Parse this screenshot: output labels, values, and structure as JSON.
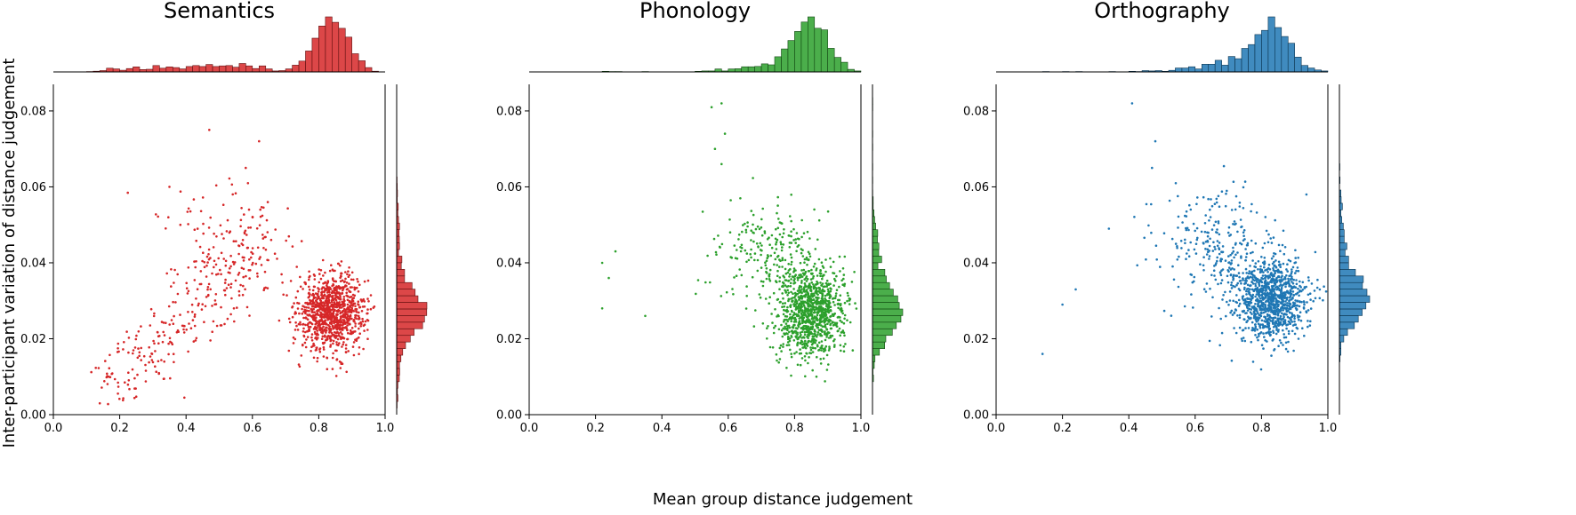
{
  "figure": {
    "xlabel": "Mean group distance judgement",
    "ylabel": "Inter-participant variation of distance judgement"
  },
  "chart_data": [
    {
      "type": "scatter",
      "title": "Semantics",
      "color": "#d62728",
      "xlim": [
        0.0,
        1.0
      ],
      "ylim": [
        0.0,
        0.087
      ],
      "xticks": [
        "0.0",
        "0.2",
        "0.4",
        "0.6",
        "0.8",
        "1.0"
      ],
      "yticks": [
        "0.00",
        "0.02",
        "0.04",
        "0.06",
        "0.08"
      ],
      "marginals": "histograms on top (x) and right (y)",
      "clusters": [
        {
          "description": "dense cluster",
          "center": [
            0.84,
            0.027
          ],
          "sd": [
            0.05,
            0.005
          ],
          "n": 1000
        },
        {
          "description": "diagonal tail",
          "from": [
            0.15,
            0.006
          ],
          "to": [
            0.65,
            0.045
          ],
          "spread": 0.006,
          "n": 260
        },
        {
          "description": "upper scatter",
          "center": [
            0.52,
            0.045
          ],
          "sd": [
            0.11,
            0.008
          ],
          "n": 110
        }
      ],
      "notable_points": [
        [
          0.14,
          0.003
        ],
        [
          0.47,
          0.075
        ],
        [
          0.62,
          0.072
        ],
        [
          0.58,
          0.065
        ],
        [
          0.35,
          0.06
        ]
      ]
    },
    {
      "type": "scatter",
      "title": "Phonology",
      "color": "#2ca02c",
      "xlim": [
        0.0,
        1.0
      ],
      "ylim": [
        0.0,
        0.087
      ],
      "xticks": [
        "0.0",
        "0.2",
        "0.4",
        "0.6",
        "0.8",
        "1.0"
      ],
      "yticks": [
        "0.00",
        "0.02",
        "0.04",
        "0.06",
        "0.08"
      ],
      "marginals": "histograms on top (x) and right (y)",
      "clusters": [
        {
          "description": "dense cluster",
          "center": [
            0.85,
            0.027
          ],
          "sd": [
            0.05,
            0.006
          ],
          "n": 1000
        },
        {
          "description": "upper-left scatter",
          "center": [
            0.72,
            0.042
          ],
          "sd": [
            0.08,
            0.007
          ],
          "n": 220
        }
      ],
      "notable_points": [
        [
          0.22,
          0.04
        ],
        [
          0.24,
          0.036
        ],
        [
          0.26,
          0.043
        ],
        [
          0.35,
          0.026
        ],
        [
          0.22,
          0.028
        ],
        [
          0.55,
          0.081
        ],
        [
          0.58,
          0.082
        ],
        [
          0.56,
          0.07
        ],
        [
          0.58,
          0.066
        ],
        [
          0.59,
          0.074
        ]
      ]
    },
    {
      "type": "scatter",
      "title": "Orthography",
      "color": "#1f77b4",
      "xlim": [
        0.0,
        1.0
      ],
      "ylim": [
        0.0,
        0.087
      ],
      "xticks": [
        "0.0",
        "0.2",
        "0.4",
        "0.6",
        "0.8",
        "1.0"
      ],
      "yticks": [
        "0.00",
        "0.02",
        "0.04",
        "0.06",
        "0.08"
      ],
      "marginals": "histograms on top (x) and right (y)",
      "clusters": [
        {
          "description": "dense cluster",
          "center": [
            0.83,
            0.03
          ],
          "sd": [
            0.055,
            0.0055
          ],
          "n": 1000
        },
        {
          "description": "upper-left scatter",
          "center": [
            0.66,
            0.045
          ],
          "sd": [
            0.09,
            0.008
          ],
          "n": 260
        }
      ],
      "notable_points": [
        [
          0.14,
          0.016
        ],
        [
          0.2,
          0.029
        ],
        [
          0.24,
          0.033
        ],
        [
          0.41,
          0.082
        ],
        [
          0.48,
          0.072
        ],
        [
          0.47,
          0.065
        ],
        [
          0.34,
          0.049
        ]
      ]
    }
  ]
}
